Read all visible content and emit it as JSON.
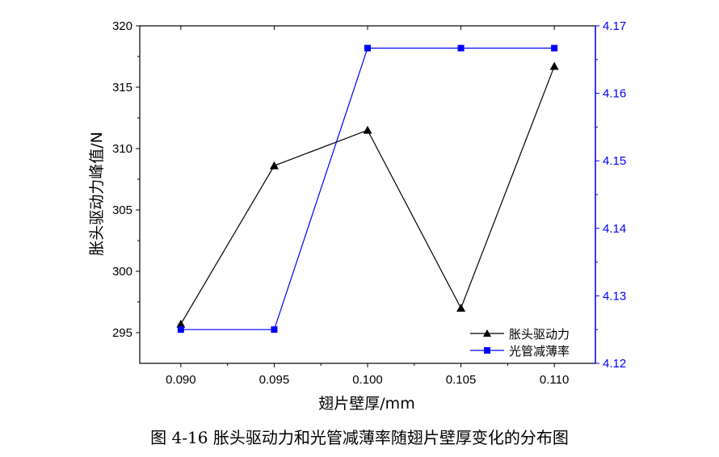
{
  "caption": "图 4-16  胀头驱动力和光管减薄率随翅片壁厚变化的分布图",
  "chart_data": {
    "type": "line",
    "xlabel": "翅片壁厚/mm",
    "ylabel": "胀头驱动力峰值/N",
    "y2label": "",
    "x": [
      0.09,
      0.095,
      0.1,
      0.105,
      0.11
    ],
    "x_tick_labels": [
      "0.090",
      "0.095",
      "0.100",
      "0.105",
      "0.110"
    ],
    "xlim": [
      0.0878,
      0.1122
    ],
    "ylim": [
      292.5,
      320
    ],
    "y_ticks": [
      295,
      300,
      305,
      310,
      315,
      320
    ],
    "y2lim": [
      4.12,
      4.17
    ],
    "y2_ticks": [
      "4.12",
      "4.13",
      "4.14",
      "4.15",
      "4.16",
      "4.17"
    ],
    "grid": false,
    "legend_position": "bottom-right",
    "series": [
      {
        "name": "胀头驱动力",
        "axis": "left",
        "color": "#000000",
        "marker": "triangle",
        "values": [
          295.7,
          308.6,
          311.5,
          297.0,
          316.7
        ]
      },
      {
        "name": "光管减薄率",
        "axis": "right",
        "color": "#0000ff",
        "marker": "square",
        "values": [
          4.125,
          4.125,
          4.1667,
          4.1667,
          4.1667
        ]
      }
    ]
  }
}
